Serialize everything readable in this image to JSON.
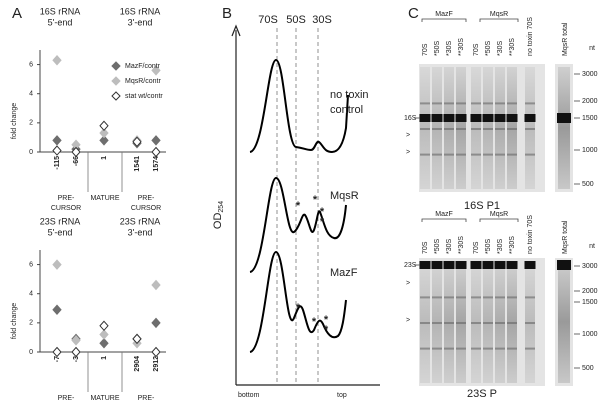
{
  "panel_a": {
    "label": "A",
    "y_label": "fold change",
    "legend": [
      {
        "name": "MazF/contr",
        "fill": "#6e6e6e",
        "stroke": "#6e6e6e"
      },
      {
        "name": "MqsR/contr",
        "fill": "#bdbdbd",
        "stroke": "#bdbdbd"
      },
      {
        "name": "stat wt/contr",
        "fill": "#ffffff",
        "stroke": "#333333"
      }
    ],
    "charts": [
      {
        "header_left": [
          "16S rRNA",
          "5'-end"
        ],
        "header_right": [
          "16S rRNA",
          "3'-end"
        ],
        "ylim": [
          0,
          7
        ],
        "yticks": [
          0,
          2,
          4,
          6
        ],
        "positions": [
          "-115",
          "-66",
          "1",
          "1541",
          "1574"
        ],
        "groups": [
          [
            "PRE-",
            "CURSOR"
          ],
          [
            "MATURE"
          ],
          [
            "PRE-",
            "CURSOR"
          ]
        ],
        "values": [
          [
            0.8,
            0.2,
            0.8,
            0.6,
            0.8
          ],
          [
            6.3,
            0.5,
            1.3,
            0.8,
            5.6
          ],
          [
            0.1,
            0.0,
            1.8,
            0.7,
            0.0
          ]
        ]
      },
      {
        "header_left": [
          "23S rRNA",
          "5'-end"
        ],
        "header_right": [
          "23S rRNA",
          "3'-end"
        ],
        "ylim": [
          0,
          7
        ],
        "yticks": [
          0,
          2,
          4,
          6
        ],
        "positions": [
          "-7",
          "-3",
          "1",
          "2904",
          "2912"
        ],
        "groups": [
          [
            "PRE-",
            "CURSOR"
          ],
          [
            "MATURE"
          ],
          [
            "PRE-",
            "CURSOR"
          ]
        ],
        "values": [
          [
            2.9,
            0.9,
            0.6,
            0.9,
            2.0
          ],
          [
            6.0,
            0.8,
            1.2,
            0.6,
            4.6
          ],
          [
            0.0,
            0.0,
            1.8,
            0.9,
            0.0
          ]
        ]
      }
    ]
  },
  "panel_b": {
    "label": "B",
    "peaks": [
      "70S",
      "50S",
      "30S"
    ],
    "y_label": "OD",
    "y_label_sub": "254",
    "x_start": "bottom",
    "x_end": "top",
    "profiles": [
      {
        "name": [
          "no toxin",
          "control"
        ],
        "asterisks": []
      },
      {
        "name": [
          "MqsR"
        ],
        "asterisks": [
          "*",
          "*",
          "*",
          "*"
        ]
      },
      {
        "name": [
          "MazF"
        ],
        "asterisks": [
          "*",
          "*",
          "*",
          "*"
        ]
      }
    ]
  },
  "panel_c": {
    "label": "C",
    "gels": [
      {
        "groups": [
          "MazF",
          "MqsR"
        ],
        "lanes": [
          "70S",
          "*50S",
          "*30S",
          "**30S",
          "70S",
          "*50S",
          "*30S",
          "**30S",
          "no toxin 70S"
        ],
        "total_lane": "MqsR total",
        "unit": "nt",
        "markers": [
          "3000",
          "2000",
          "1500",
          "1000",
          "500"
        ],
        "band_label": "16S",
        "arrows": [
          ">",
          ">"
        ],
        "caption": "16S P1"
      },
      {
        "groups": [
          "MazF",
          "MqsR"
        ],
        "lanes": [
          "70S",
          "*50S",
          "*30S",
          "**30S",
          "70S",
          "*50S",
          "*30S",
          "**30S",
          "no toxin 70S"
        ],
        "total_lane": "MqsR total",
        "unit": "nt",
        "markers": [
          "3000",
          "2000",
          "1500",
          "1000",
          "500"
        ],
        "band_label": "23S",
        "arrows": [
          ">",
          ">"
        ],
        "caption": "23S P"
      }
    ]
  }
}
